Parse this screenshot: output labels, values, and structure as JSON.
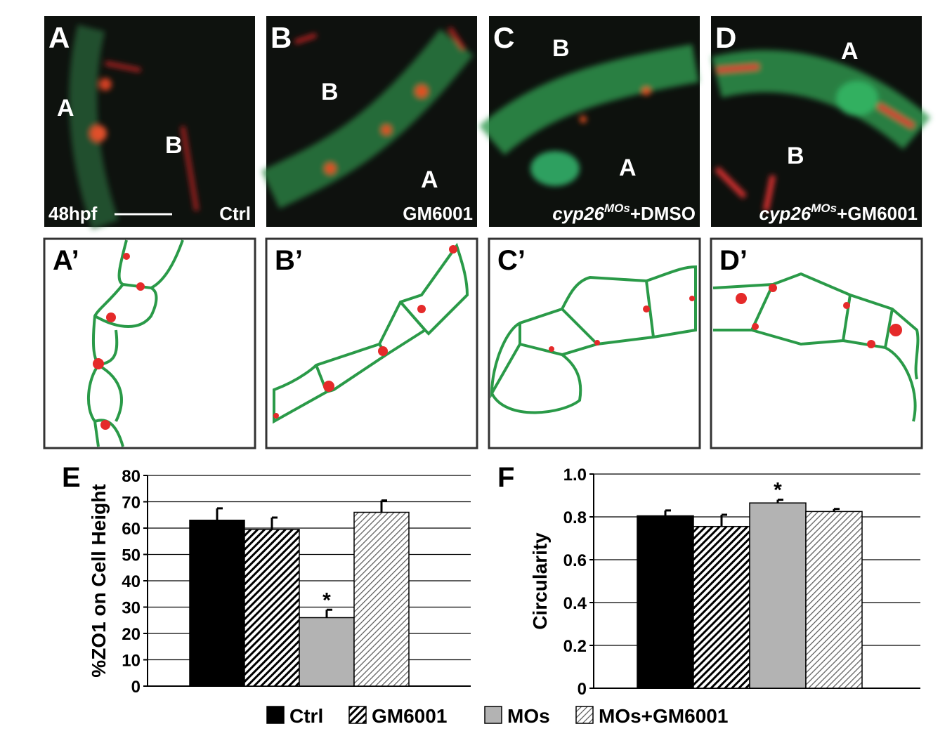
{
  "panels": [
    {
      "letter": "A",
      "labels": [
        "A",
        "B"
      ],
      "stage": "48hpf",
      "condition": {
        "text": "Ctrl"
      }
    },
    {
      "letter": "B",
      "labels": [
        "B",
        "A"
      ],
      "condition": {
        "text": "GM6001"
      }
    },
    {
      "letter": "C",
      "labels": [
        "B",
        "A"
      ],
      "condition": {
        "gene": "cyp26",
        "superscript": "MOs",
        "text": "+DMSO"
      }
    },
    {
      "letter": "D",
      "labels": [
        "A",
        "B"
      ],
      "condition": {
        "gene": "cyp26",
        "superscript": "MOs",
        "text": "+GM6001"
      }
    }
  ],
  "tracings": [
    "A’",
    "B’",
    "C’",
    "D’"
  ],
  "chart_data": [
    {
      "type": "bar",
      "panel_label": "E",
      "y_label": "%ZO1 on Cell Height",
      "categories": [
        null
      ],
      "series": [
        {
          "name": "Ctrl",
          "color": "#000000",
          "pattern": "solid",
          "values": [
            63
          ],
          "errors": [
            4.5
          ]
        },
        {
          "name": "GM6001",
          "color": "#000000",
          "pattern": "dense-diagonal",
          "values": [
            59.5
          ],
          "errors": [
            4.5
          ]
        },
        {
          "name": "MOs",
          "color": "#b3b3b3",
          "pattern": "solid",
          "values": [
            26
          ],
          "errors": [
            3
          ]
        },
        {
          "name": "MOs+GM6001",
          "color": "#555555",
          "pattern": "light-diagonal",
          "values": [
            66
          ],
          "errors": [
            4.5
          ]
        }
      ],
      "annotation": "*",
      "ylim": [
        0,
        80
      ],
      "yticks": [
        0,
        10,
        20,
        30,
        40,
        50,
        60,
        70,
        80
      ],
      "grid": true
    },
    {
      "type": "bar",
      "panel_label": "F",
      "y_label": "Circularity",
      "categories": [
        null
      ],
      "series": [
        {
          "color": "#000000",
          "pattern": "solid",
          "values": [
            0.805
          ],
          "errors": [
            0.025
          ]
        },
        {
          "color": "#000000",
          "pattern": "dense-diagonal",
          "values": [
            0.755
          ],
          "errors": [
            0.055
          ]
        },
        {
          "color": "#b3b3b3",
          "pattern": "solid",
          "values": [
            0.865
          ],
          "errors": [
            0.015
          ]
        },
        {
          "color": "#555555",
          "pattern": "light-diagonal",
          "values": [
            0.825
          ],
          "errors": [
            0.012
          ]
        }
      ],
      "annotation": "*",
      "ylim": [
        0,
        1
      ],
      "yticks": [
        0,
        0.2,
        0.4,
        0.6,
        0.8,
        {
          "value": 1,
          "label": "1.0"
        }
      ],
      "grid": true
    }
  ]
}
